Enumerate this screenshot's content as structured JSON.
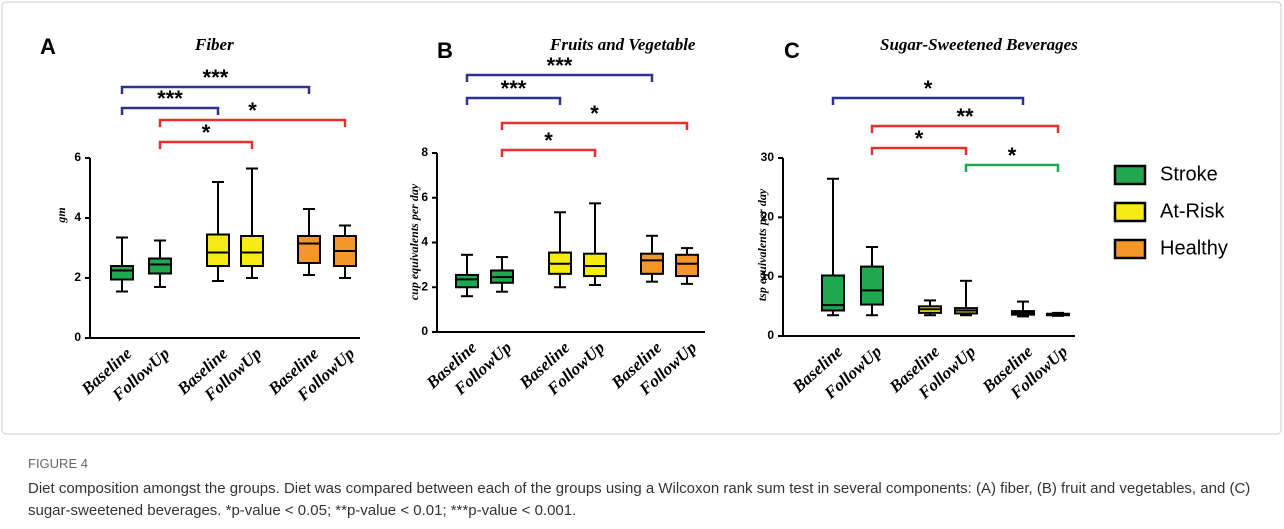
{
  "chart_data": [
    {
      "type": "box",
      "panel": "A",
      "title": "Fiber",
      "ylabel": "gm",
      "ylim": [
        0,
        6
      ],
      "yticks": [
        0,
        2,
        4,
        6
      ],
      "categories": [
        "Baseline",
        "FollowUp"
      ],
      "series": [
        {
          "boxes": [
            {
              "min": 1.55,
              "q1": 1.95,
              "median": 2.25,
              "q3": 2.4,
              "max": 3.35
            },
            {
              "min": 1.7,
              "q1": 2.15,
              "median": 2.45,
              "q3": 2.65,
              "max": 3.25
            }
          ]
        },
        {
          "boxes": [
            {
              "min": 1.9,
              "q1": 2.4,
              "median": 2.85,
              "q3": 3.45,
              "max": 5.2
            },
            {
              "min": 2.0,
              "q1": 2.4,
              "median": 2.85,
              "q3": 3.4,
              "max": 5.65
            }
          ]
        },
        {
          "boxes": [
            {
              "min": 2.1,
              "q1": 2.5,
              "median": 3.15,
              "q3": 3.4,
              "max": 4.3
            },
            {
              "min": 2.0,
              "q1": 2.4,
              "median": 2.9,
              "q3": 3.4,
              "max": 3.75
            }
          ]
        }
      ],
      "brackets": [
        {
          "label": "***",
          "color": "#2e3192",
          "span": [
            0,
            4
          ]
        },
        {
          "label": "***",
          "color": "#2e3192",
          "span": [
            0,
            2
          ]
        },
        {
          "label": "*",
          "color": "#e8302a",
          "span": [
            1,
            5
          ]
        },
        {
          "label": "*",
          "color": "#e8302a",
          "span": [
            1,
            3
          ]
        }
      ]
    },
    {
      "type": "box",
      "panel": "B",
      "title": "Fruits and Vegetable",
      "ylabel": "cup equivalents per day",
      "ylim": [
        0,
        8
      ],
      "yticks": [
        0,
        2,
        4,
        6,
        8
      ],
      "categories": [
        "Baseline",
        "FollowUp"
      ],
      "series": [
        {
          "boxes": [
            {
              "min": 1.6,
              "q1": 2.0,
              "median": 2.35,
              "q3": 2.55,
              "max": 3.45
            },
            {
              "min": 1.8,
              "q1": 2.2,
              "median": 2.45,
              "q3": 2.75,
              "max": 3.35
            }
          ]
        },
        {
          "boxes": [
            {
              "min": 2.0,
              "q1": 2.6,
              "median": 3.05,
              "q3": 3.55,
              "max": 5.35
            },
            {
              "min": 2.1,
              "q1": 2.5,
              "median": 2.95,
              "q3": 3.5,
              "max": 5.75
            }
          ]
        },
        {
          "boxes": [
            {
              "min": 2.25,
              "q1": 2.6,
              "median": 3.2,
              "q3": 3.5,
              "max": 4.3
            },
            {
              "min": 2.15,
              "q1": 2.5,
              "median": 3.05,
              "q3": 3.45,
              "max": 3.75
            }
          ]
        }
      ],
      "brackets": [
        {
          "label": "***",
          "color": "#2e3192",
          "span": [
            0,
            4
          ]
        },
        {
          "label": "***",
          "color": "#2e3192",
          "span": [
            0,
            2
          ]
        },
        {
          "label": "*",
          "color": "#e8302a",
          "span": [
            1,
            5
          ]
        },
        {
          "label": "*",
          "color": "#e8302a",
          "span": [
            1,
            3
          ]
        }
      ]
    },
    {
      "type": "box",
      "panel": "C",
      "title": "Sugar-Sweetened Beverages",
      "ylabel": "tsp equivalents per day",
      "ylim": [
        0,
        30
      ],
      "yticks": [
        0,
        10,
        20,
        30
      ],
      "categories": [
        "Baseline",
        "FollowUp"
      ],
      "series": [
        {
          "boxes": [
            {
              "min": 3.5,
              "q1": 4.3,
              "median": 5.2,
              "q3": 10.2,
              "max": 26.5
            },
            {
              "min": 3.5,
              "q1": 5.3,
              "median": 7.7,
              "q3": 11.7,
              "max": 15
            }
          ]
        },
        {
          "boxes": [
            {
              "min": 3.5,
              "q1": 3.9,
              "median": 4.5,
              "q3": 5.0,
              "max": 6.0
            },
            {
              "min": 3.5,
              "q1": 3.8,
              "median": 4.3,
              "q3": 4.7,
              "max": 9.3
            }
          ]
        },
        {
          "boxes": [
            {
              "min": 3.3,
              "q1": 3.6,
              "median": 3.9,
              "q3": 4.2,
              "max": 5.8
            },
            {
              "min": 3.4,
              "q1": 3.5,
              "median": 3.6,
              "q3": 3.75,
              "max": 3.9
            }
          ]
        }
      ],
      "brackets": [
        {
          "label": "*",
          "color": "#2e3192",
          "span": [
            0,
            4
          ]
        },
        {
          "label": "**",
          "color": "#e8302a",
          "span": [
            1,
            5
          ]
        },
        {
          "label": "*",
          "color": "#e8302a",
          "span": [
            1,
            3
          ]
        },
        {
          "label": "*",
          "color": "#1fa84f",
          "span": [
            3,
            5
          ]
        }
      ]
    }
  ],
  "legend": [
    {
      "name": "Stroke",
      "color": "#1fa84f"
    },
    {
      "name": "At-Risk",
      "color": "#f5ea14"
    },
    {
      "name": "Healthy",
      "color": "#f5962a"
    }
  ],
  "caption": {
    "label": "FIGURE 4",
    "text": "Diet composition amongst the groups. Diet was compared between each of the groups using a Wilcoxon rank sum test in several components: (A) fiber, (B) fruit and vegetables, and (C) sugar-sweetened beverages. *p-value < 0.05; **p-value < 0.01; ***p-value < 0.001."
  }
}
